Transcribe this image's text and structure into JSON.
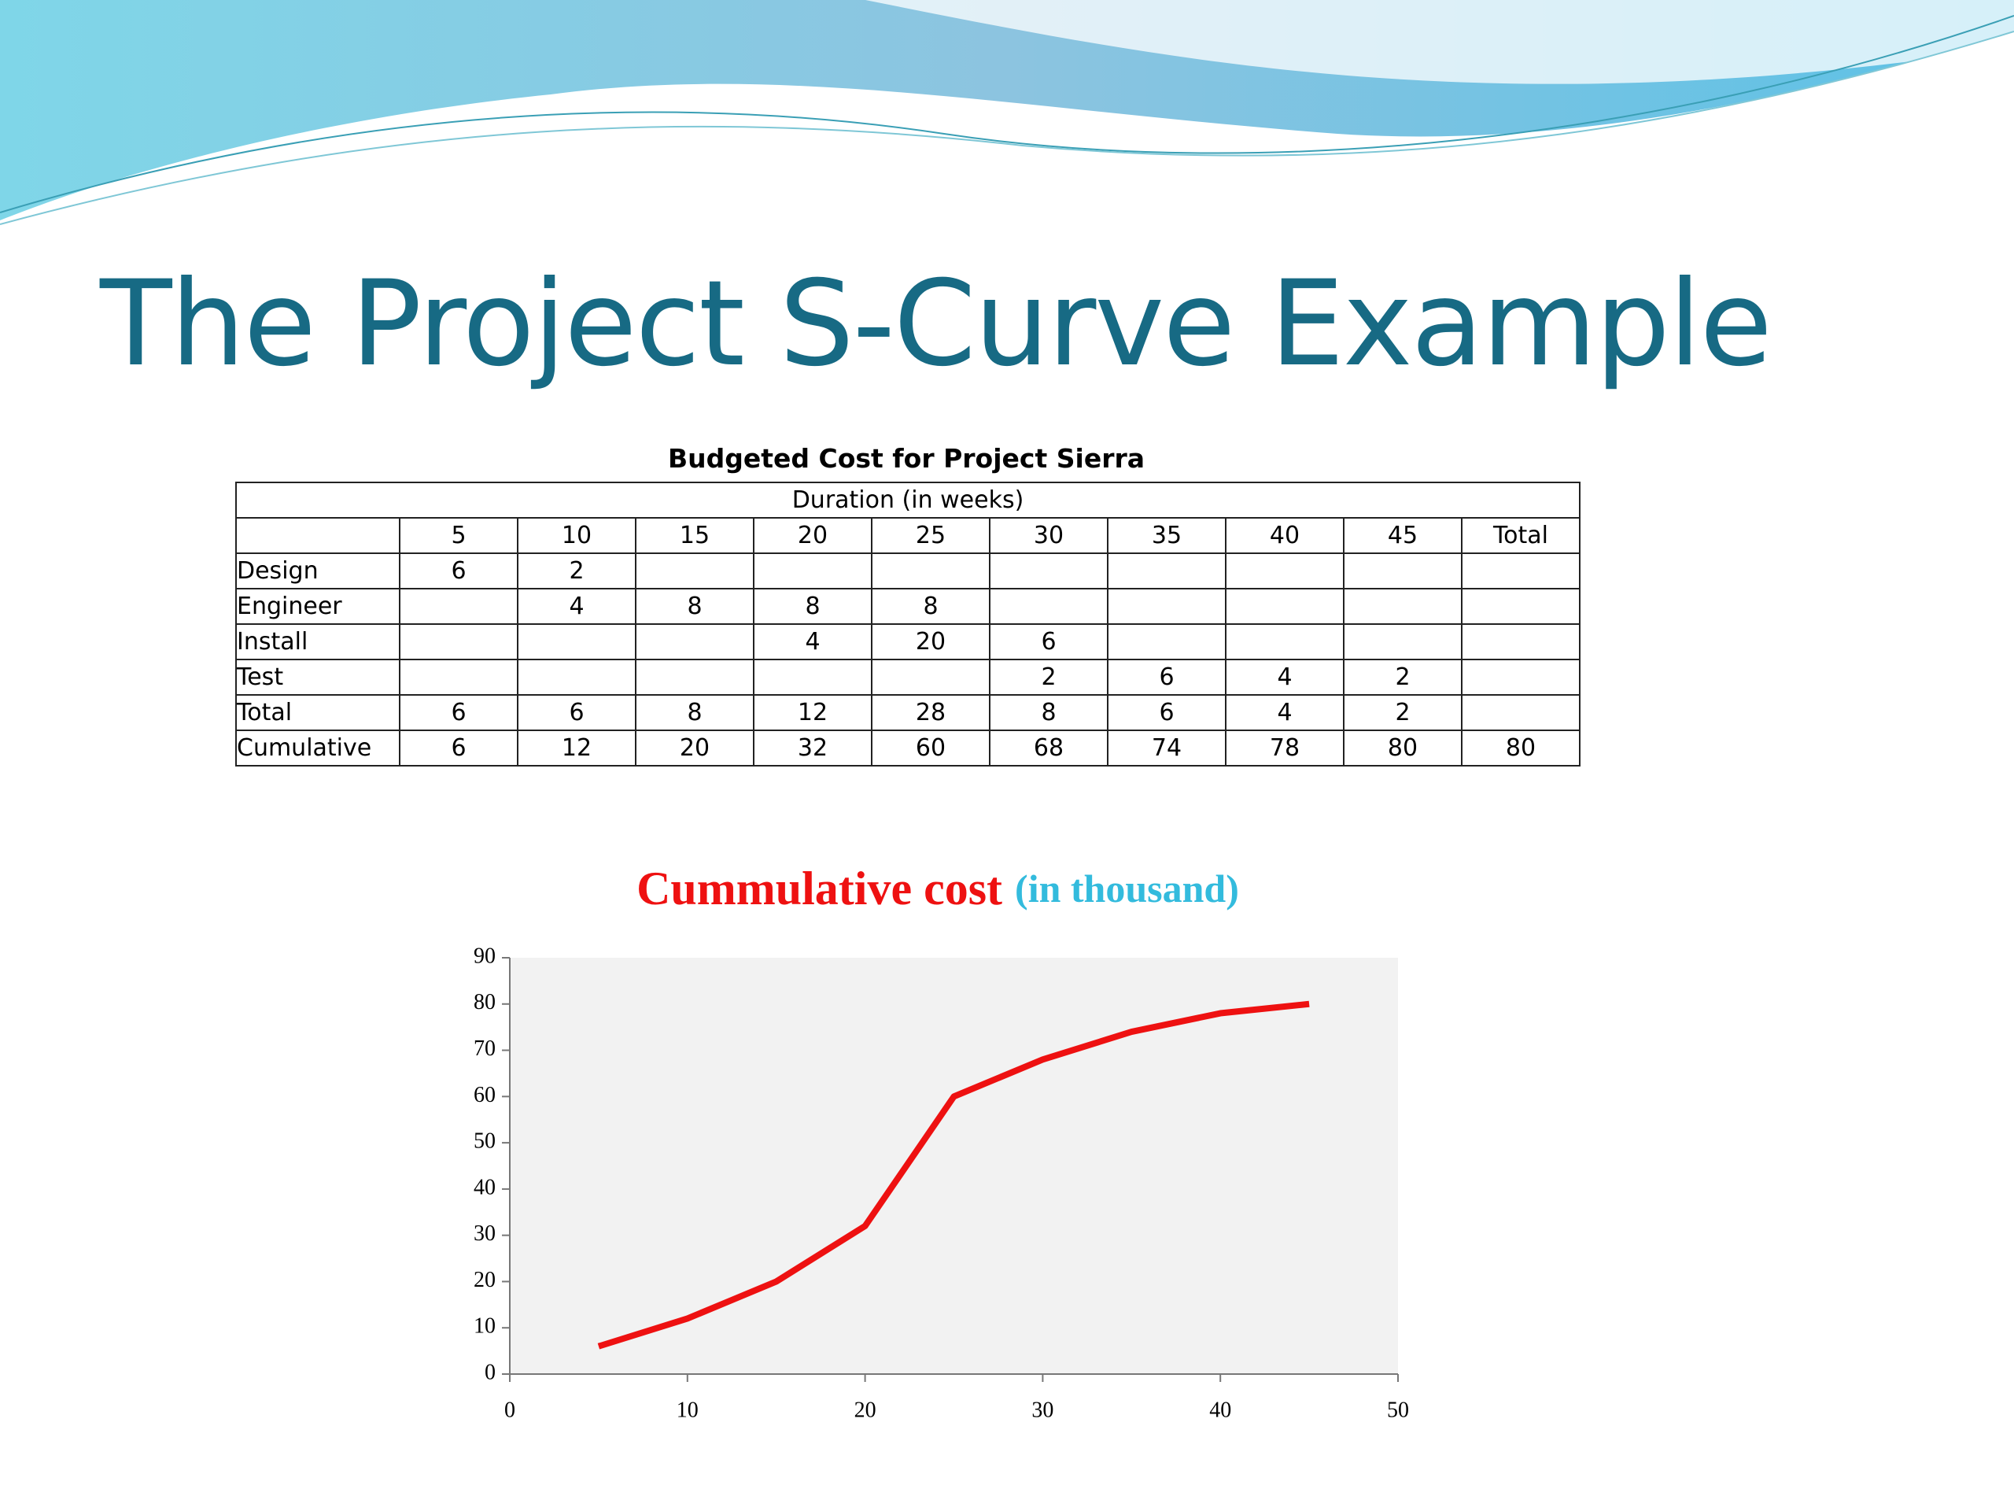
{
  "title": "The Project S-Curve Example",
  "table": {
    "caption": "Budgeted Cost for Project Sierra",
    "header": "Duration (in weeks)",
    "columns": [
      "5",
      "10",
      "15",
      "20",
      "25",
      "30",
      "35",
      "40",
      "45",
      "Total"
    ],
    "rows": [
      {
        "label": "Design",
        "cells": [
          6,
          2,
          null,
          null,
          null,
          null,
          null,
          null,
          null,
          null
        ]
      },
      {
        "label": "Engineer",
        "cells": [
          null,
          4,
          8,
          8,
          8,
          null,
          null,
          null,
          null,
          null
        ]
      },
      {
        "label": "Install",
        "cells": [
          null,
          null,
          null,
          4,
          20,
          6,
          null,
          null,
          null,
          null
        ]
      },
      {
        "label": "Test",
        "cells": [
          null,
          null,
          null,
          null,
          null,
          2,
          6,
          4,
          2,
          null
        ]
      },
      {
        "label": "Total",
        "cells": [
          6,
          6,
          8,
          12,
          28,
          8,
          6,
          4,
          2,
          null
        ]
      },
      {
        "label": "Cumulative",
        "cells": [
          6,
          12,
          20,
          32,
          60,
          68,
          74,
          78,
          80,
          80
        ]
      }
    ]
  },
  "chart_data": {
    "type": "line",
    "title": "Cummulative cost",
    "subtitle": "(in thousand)",
    "x": [
      5,
      10,
      15,
      20,
      25,
      30,
      35,
      40,
      45
    ],
    "values": [
      6,
      12,
      20,
      32,
      60,
      68,
      74,
      78,
      80
    ],
    "color": "#ee1111",
    "xlim": [
      0,
      50
    ],
    "xticks": [
      0,
      10,
      20,
      30,
      40,
      50
    ],
    "ylim": [
      0,
      90
    ],
    "yticks": [
      0,
      10,
      20,
      30,
      40,
      50,
      60,
      70,
      80,
      90
    ],
    "grid": false
  }
}
